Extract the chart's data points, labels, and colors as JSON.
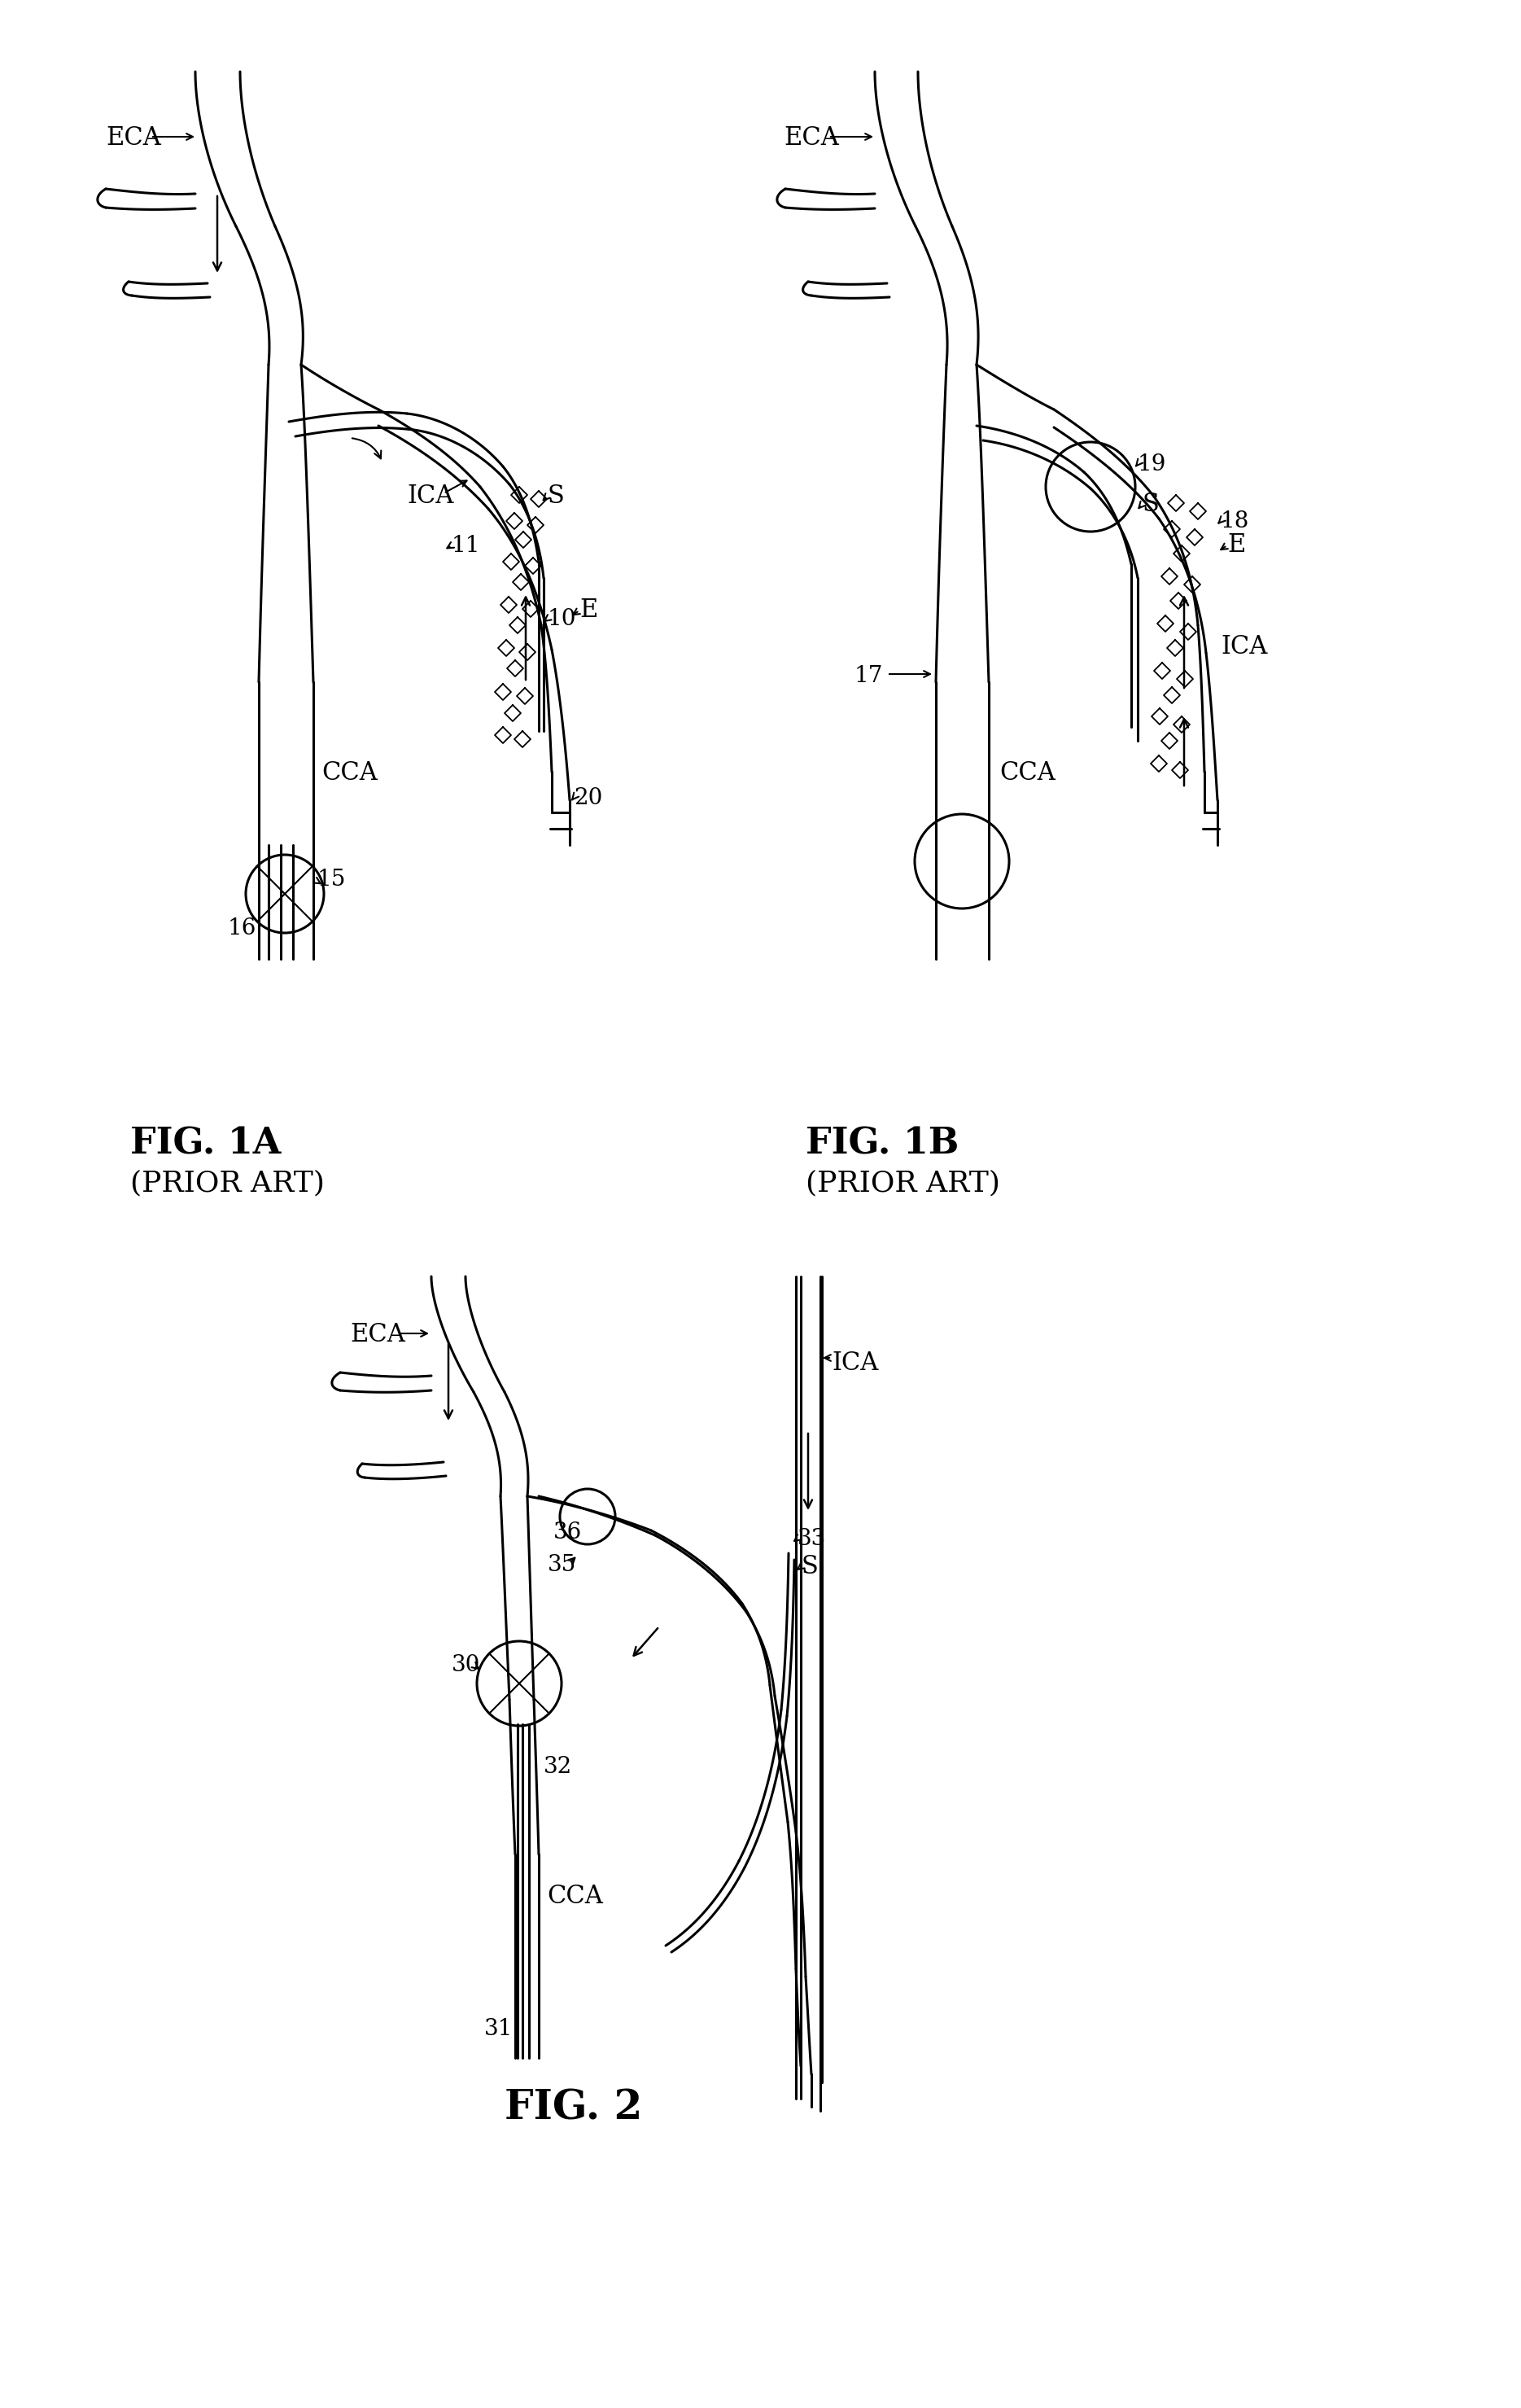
{
  "fig1a_label": "FIG. 1A",
  "fig1a_sub": "(PRIOR ART)",
  "fig1b_label": "FIG. 1B",
  "fig1b_sub": "(PRIOR ART)",
  "fig2_label": "FIG. 2",
  "background_color": "#ffffff",
  "line_color": "#000000",
  "line_width": 2.2
}
